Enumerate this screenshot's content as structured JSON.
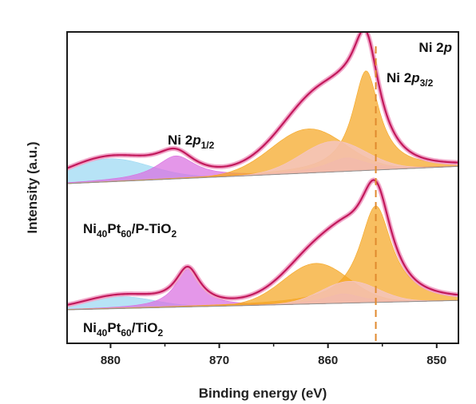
{
  "chart_data": {
    "type": "line",
    "title": "",
    "xlabel": "Binding energy (eV)",
    "ylabel": "Intensity (a.u.)",
    "x_reversed": true,
    "xlim": [
      884,
      848
    ],
    "x_ticks": [
      880,
      870,
      860,
      850
    ],
    "y_ticks_shown": false,
    "reference_line": {
      "x": 855.6,
      "style": "dashed",
      "color": "#e08a2e"
    },
    "annotations": {
      "region": {
        "base": "Ni 2",
        "italic": "p",
        "sub": ""
      },
      "peak_3_2": {
        "base": "Ni 2",
        "italic": "p",
        "sub": "3/2"
      },
      "peak_1_2": {
        "base": "Ni 2",
        "italic": "p",
        "sub": "1/2"
      }
    },
    "colors": {
      "envelope": "#c2185b",
      "envelope_halo": "#f1a6c9",
      "baseline": "#8c8c8c",
      "ni0_fill": "#f4c6cf",
      "ni2_fill": "#f5a623",
      "sat_fill": "#d96fe0",
      "sat2_fill": "#9bd8f2",
      "ref_line": "#e08a2e"
    },
    "series": [
      {
        "name": "Ni40Pt60/P-TiO2",
        "label": {
          "parts": [
            "Ni",
            "40",
            "Pt",
            "60",
            "/P-TiO",
            "2"
          ]
        },
        "baseline": [
          [
            884,
            0.0
          ],
          [
            848,
            0.045
          ]
        ],
        "components": [
          {
            "center": 880.2,
            "width": 3.8,
            "amp": 0.06,
            "fill": "sat2_fill",
            "shape": "gauss"
          },
          {
            "center": 874.0,
            "width": 2.2,
            "amp": 0.06,
            "fill": "sat_fill",
            "shape": "lorentz"
          },
          {
            "center": 861.8,
            "width": 3.4,
            "amp": 0.115,
            "fill": "ni2_fill",
            "shape": "gauss"
          },
          {
            "center": 858.3,
            "width": 2.2,
            "amp": 0.035,
            "fill": "sat_fill",
            "shape": "lorentz"
          },
          {
            "center": 856.5,
            "width": 1.5,
            "amp": 0.26,
            "fill": "ni2_fill",
            "shape": "lorentz"
          },
          {
            "center": 859.5,
            "width": 3.0,
            "amp": 0.08,
            "fill": "ni0_fill",
            "shape": "gauss"
          }
        ]
      },
      {
        "name": "Ni40Pt60/TiO2",
        "label": {
          "parts": [
            "Ni",
            "40",
            "Pt",
            "60",
            "/TiO",
            "2"
          ]
        },
        "baseline": [
          [
            884,
            0.0
          ],
          [
            848,
            0.03
          ]
        ],
        "components": [
          {
            "center": 879.2,
            "width": 3.2,
            "amp": 0.038,
            "fill": "sat2_fill",
            "shape": "gauss"
          },
          {
            "center": 872.9,
            "width": 1.4,
            "amp": 0.12,
            "fill": "sat_fill",
            "shape": "lorentz"
          },
          {
            "center": 861.1,
            "width": 3.0,
            "amp": 0.13,
            "fill": "ni2_fill",
            "shape": "gauss"
          },
          {
            "center": 858.6,
            "width": 2.0,
            "amp": 0.03,
            "fill": "sat_fill",
            "shape": "lorentz"
          },
          {
            "center": 855.6,
            "width": 1.8,
            "amp": 0.31,
            "fill": "ni2_fill",
            "shape": "lorentz"
          },
          {
            "center": 858.0,
            "width": 2.6,
            "amp": 0.07,
            "fill": "ni0_fill",
            "shape": "gauss"
          }
        ]
      }
    ]
  }
}
